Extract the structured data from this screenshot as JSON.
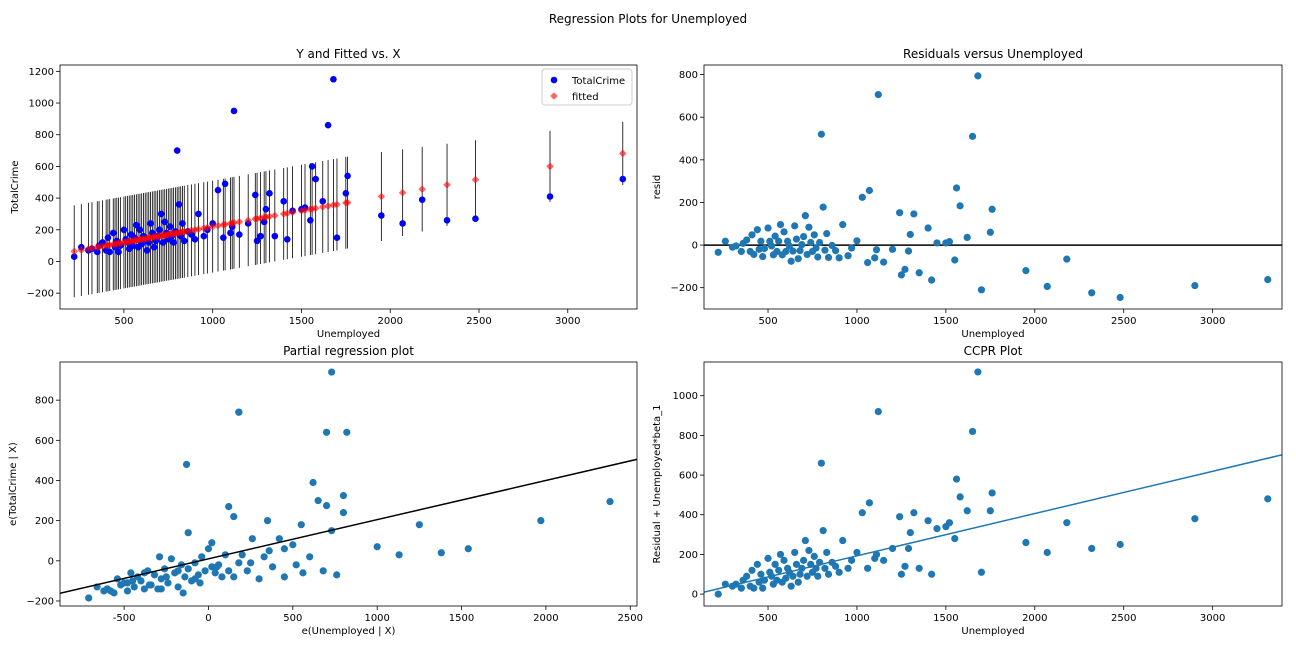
{
  "suptitle": "Regression Plots for Unemployed",
  "chart_data": [
    {
      "type": "scatter",
      "title": "Y and Fitted vs. X",
      "xlabel": "Unemployed",
      "ylabel": "TotalCrime",
      "xlim": [
        140,
        3390
      ],
      "ylim": [
        -300,
        1240
      ],
      "xticks": [
        500,
        1000,
        1500,
        2000,
        2500,
        3000
      ],
      "yticks": [
        -200,
        0,
        200,
        400,
        600,
        800,
        1000,
        1200
      ],
      "legend": {
        "position": "top-right",
        "entries": [
          "TotalCrime",
          "fitted"
        ]
      },
      "fitted_line": {
        "intercept": 20,
        "slope": 0.2
      },
      "error_bar_halfwidth": 290,
      "series": [
        {
          "name": "TotalCrime",
          "color": "#0000ff",
          "marker": "circle",
          "x": [
            220,
            260,
            300,
            320,
            350,
            360,
            380,
            400,
            410,
            420,
            440,
            450,
            460,
            470,
            480,
            500,
            510,
            520,
            530,
            540,
            550,
            560,
            570,
            580,
            590,
            600,
            610,
            620,
            630,
            640,
            650,
            660,
            670,
            680,
            690,
            700,
            710,
            720,
            730,
            740,
            750,
            760,
            770,
            780,
            790,
            800,
            810,
            820,
            830,
            840,
            860,
            880,
            900,
            920,
            950,
            970,
            1000,
            1030,
            1060,
            1070,
            1100,
            1110,
            1120,
            1150,
            1200,
            1240,
            1250,
            1270,
            1290,
            1300,
            1320,
            1350,
            1400,
            1420,
            1450,
            1500,
            1520,
            1550,
            1560,
            1580,
            1620,
            1650,
            1680,
            1700,
            1750,
            1760,
            1950,
            2070,
            2180,
            2320,
            2480,
            2900,
            3310
          ],
          "y": [
            30,
            90,
            70,
            80,
            60,
            100,
            120,
            70,
            150,
            60,
            180,
            90,
            130,
            60,
            100,
            200,
            140,
            120,
            80,
            170,
            100,
            150,
            230,
            90,
            200,
            110,
            160,
            140,
            70,
            120,
            240,
            180,
            90,
            130,
            160,
            200,
            300,
            120,
            250,
            180,
            140,
            220,
            160,
            120,
            190,
            700,
            360,
            160,
            240,
            130,
            190,
            170,
            140,
            300,
            160,
            200,
            240,
            450,
            150,
            490,
            180,
            220,
            950,
            170,
            240,
            420,
            130,
            160,
            250,
            330,
            430,
            160,
            380,
            140,
            320,
            330,
            340,
            260,
            600,
            520,
            380,
            860,
            1150,
            150,
            430,
            540,
            290,
            240,
            390,
            260,
            270,
            410,
            520
          ]
        },
        {
          "name": "fitted",
          "color": "#ff0000",
          "marker": "diamond",
          "x": [
            220,
            260,
            300,
            320,
            350,
            360,
            380,
            400,
            410,
            420,
            440,
            450,
            460,
            470,
            480,
            500,
            510,
            520,
            530,
            540,
            550,
            560,
            570,
            580,
            590,
            600,
            610,
            620,
            630,
            640,
            650,
            660,
            670,
            680,
            690,
            700,
            710,
            720,
            730,
            740,
            750,
            760,
            770,
            780,
            790,
            800,
            810,
            820,
            830,
            840,
            860,
            880,
            900,
            920,
            950,
            970,
            1000,
            1030,
            1060,
            1070,
            1100,
            1110,
            1120,
            1150,
            1200,
            1240,
            1250,
            1270,
            1290,
            1300,
            1320,
            1350,
            1400,
            1420,
            1450,
            1500,
            1520,
            1550,
            1560,
            1580,
            1620,
            1650,
            1680,
            1700,
            1750,
            1760,
            1950,
            2070,
            2180,
            2320,
            2480,
            2900,
            3310
          ],
          "y": [
            64,
            72,
            80,
            84,
            90,
            92,
            96,
            100,
            102,
            104,
            108,
            110,
            112,
            114,
            116,
            120,
            122,
            124,
            126,
            128,
            130,
            132,
            134,
            136,
            138,
            140,
            142,
            144,
            146,
            148,
            150,
            152,
            154,
            156,
            158,
            160,
            162,
            164,
            166,
            168,
            170,
            172,
            174,
            176,
            178,
            180,
            182,
            184,
            186,
            188,
            192,
            196,
            200,
            204,
            210,
            214,
            220,
            226,
            232,
            234,
            240,
            242,
            244,
            250,
            260,
            268,
            270,
            274,
            278,
            280,
            284,
            290,
            300,
            304,
            310,
            320,
            324,
            330,
            332,
            336,
            344,
            350,
            356,
            360,
            370,
            372,
            410,
            434,
            456,
            484,
            516,
            600,
            682
          ]
        }
      ]
    },
    {
      "type": "scatter",
      "title": "Residuals versus Unemployed",
      "xlabel": "Unemployed",
      "ylabel": "resid",
      "xlim": [
        140,
        3390
      ],
      "ylim": [
        -300,
        845
      ],
      "xticks": [
        500,
        1000,
        1500,
        2000,
        2500,
        3000
      ],
      "yticks": [
        -200,
        0,
        200,
        400,
        600,
        800
      ],
      "hline": 0,
      "series": [
        {
          "name": "",
          "color": "#1f77b4",
          "x": [
            220,
            260,
            300,
            320,
            350,
            360,
            380,
            400,
            410,
            420,
            440,
            450,
            460,
            470,
            480,
            500,
            510,
            520,
            530,
            540,
            550,
            560,
            570,
            580,
            590,
            600,
            610,
            620,
            630,
            640,
            650,
            660,
            670,
            680,
            690,
            700,
            710,
            720,
            730,
            740,
            750,
            760,
            770,
            780,
            790,
            800,
            810,
            820,
            830,
            840,
            860,
            880,
            900,
            920,
            950,
            970,
            1000,
            1030,
            1060,
            1070,
            1100,
            1110,
            1120,
            1150,
            1200,
            1240,
            1250,
            1270,
            1290,
            1300,
            1320,
            1350,
            1400,
            1420,
            1450,
            1500,
            1520,
            1550,
            1560,
            1580,
            1620,
            1650,
            1680,
            1700,
            1750,
            1760,
            1950,
            2070,
            2180,
            2320,
            2480,
            2900,
            3310
          ],
          "y": [
            -34,
            18,
            -10,
            -4,
            -30,
            8,
            24,
            -30,
            48,
            -44,
            72,
            -20,
            18,
            -54,
            -16,
            80,
            18,
            -4,
            -46,
            42,
            -30,
            18,
            96,
            -46,
            62,
            -30,
            18,
            -4,
            -76,
            -28,
            90,
            28,
            -64,
            -26,
            2,
            40,
            138,
            -44,
            84,
            12,
            -30,
            48,
            -14,
            -56,
            12,
            520,
            178,
            -24,
            54,
            -58,
            -2,
            -26,
            -60,
            96,
            -50,
            -14,
            20,
            224,
            -82,
            256,
            -60,
            -22,
            706,
            -80,
            -20,
            152,
            -140,
            -114,
            -28,
            50,
            146,
            -130,
            80,
            -164,
            10,
            10,
            16,
            -70,
            268,
            184,
            36,
            510,
            794,
            -210,
            60,
            168,
            -120,
            -194,
            -66,
            -224,
            -246,
            -190,
            -162
          ]
        }
      ]
    },
    {
      "type": "scatter",
      "title": "Partial regression plot",
      "xlabel": "e(Unemployed | X)",
      "ylabel": "e(TotalCrime | X)",
      "xlim": [
        -880,
        2540
      ],
      "ylim": [
        -225,
        990
      ],
      "xticks": [
        -500,
        0,
        500,
        1000,
        1500,
        2000,
        2500
      ],
      "yticks": [
        -200,
        0,
        200,
        400,
        600,
        800
      ],
      "fit_line": {
        "intercept": 10,
        "slope": 0.195
      },
      "series": [
        {
          "name": "",
          "color": "#1f77b4",
          "x": [
            -710,
            -660,
            -620,
            -600,
            -560,
            -540,
            -520,
            -500,
            -480,
            -460,
            -440,
            -420,
            -400,
            -380,
            -360,
            -340,
            -320,
            -300,
            -290,
            -280,
            -260,
            -240,
            -220,
            -200,
            -180,
            -160,
            -140,
            -120,
            -100,
            -80,
            -60,
            -40,
            -20,
            0,
            20,
            40,
            60,
            80,
            100,
            120,
            150,
            180,
            200,
            230,
            260,
            300,
            330,
            360,
            380,
            420,
            450,
            500,
            520,
            560,
            600,
            620,
            650,
            680,
            700,
            730,
            760,
            800,
            820,
            1000,
            1130,
            1250,
            1380,
            1540,
            1970,
            2380,
            -600,
            -450,
            -350,
            -250,
            -150,
            -50,
            50,
            150,
            250,
            350,
            450,
            550,
            -580,
            -480,
            -380,
            -280,
            -180,
            -80,
            20,
            120,
            -120,
            180
          ],
          "y": [
            -185,
            -130,
            -150,
            -140,
            -160,
            -90,
            -120,
            -110,
            -150,
            -60,
            -130,
            -80,
            -100,
            -140,
            -50,
            -120,
            -70,
            -140,
            20,
            -90,
            -40,
            -110,
            10,
            -60,
            -130,
            -20,
            -80,
            -40,
            -100,
            -10,
            -70,
            20,
            -50,
            60,
            90,
            -60,
            -20,
            -80,
            30,
            -50,
            -80,
            -10,
            30,
            -50,
            110,
            -90,
            20,
            50,
            -30,
            110,
            -80,
            80,
            -20,
            -60,
            20,
            390,
            300,
            -50,
            640,
            150,
            -70,
            240,
            640,
            70,
            30,
            180,
            40,
            60,
            200,
            295,
            -140,
            -100,
            -120,
            -80,
            -160,
            -110,
            -30,
            220,
            -10,
            200,
            60,
            180,
            -150,
            -110,
            -60,
            -140,
            -50,
            -90,
            -30,
            270,
            140,
            740
          ],
          "highlights": [
            {
              "x": -130,
              "y": 480
            },
            {
              "x": 730,
              "y": 940
            },
            {
              "x": 800,
              "y": 325
            },
            {
              "x": 700,
              "y": 275
            },
            {
              "x": 180,
              "y": 740
            }
          ]
        }
      ]
    },
    {
      "type": "scatter",
      "title": "CCPR Plot",
      "xlabel": "Unemployed",
      "ylabel": "Residual + Unemployed*beta_1",
      "xlim": [
        140,
        3390
      ],
      "ylim": [
        -60,
        1170
      ],
      "xticks": [
        500,
        1000,
        1500,
        2000,
        2500,
        3000
      ],
      "yticks": [
        0,
        200,
        400,
        600,
        800,
        1000
      ],
      "fit_line": {
        "intercept": -20,
        "slope": 0.213
      },
      "series": [
        {
          "name": "",
          "color": "#1f77b4",
          "x": [
            220,
            260,
            300,
            320,
            350,
            360,
            380,
            400,
            410,
            420,
            440,
            450,
            460,
            470,
            480,
            500,
            510,
            520,
            530,
            540,
            550,
            560,
            570,
            580,
            590,
            600,
            610,
            620,
            630,
            640,
            650,
            660,
            670,
            680,
            690,
            700,
            710,
            720,
            730,
            740,
            750,
            760,
            770,
            780,
            790,
            800,
            810,
            820,
            830,
            840,
            860,
            880,
            900,
            920,
            950,
            970,
            1000,
            1030,
            1060,
            1070,
            1100,
            1110,
            1120,
            1150,
            1200,
            1240,
            1250,
            1270,
            1290,
            1300,
            1320,
            1350,
            1400,
            1420,
            1450,
            1500,
            1520,
            1550,
            1560,
            1580,
            1620,
            1650,
            1680,
            1700,
            1750,
            1760,
            1950,
            2070,
            2180,
            2320,
            2480,
            2900,
            3310
          ],
          "y": [
            0,
            50,
            40,
            50,
            30,
            70,
            90,
            40,
            120,
            30,
            150,
            60,
            100,
            30,
            70,
            180,
            110,
            90,
            50,
            150,
            70,
            120,
            200,
            60,
            170,
            80,
            130,
            110,
            40,
            90,
            210,
            150,
            60,
            100,
            130,
            170,
            270,
            90,
            220,
            150,
            110,
            190,
            130,
            90,
            160,
            660,
            320,
            130,
            210,
            100,
            160,
            140,
            110,
            270,
            130,
            170,
            210,
            410,
            130,
            460,
            180,
            200,
            920,
            170,
            230,
            390,
            100,
            140,
            230,
            310,
            410,
            130,
            370,
            100,
            330,
            340,
            360,
            280,
            580,
            490,
            420,
            820,
            1120,
            110,
            420,
            510,
            260,
            210,
            360,
            230,
            250,
            380,
            480
          ]
        }
      ]
    }
  ]
}
